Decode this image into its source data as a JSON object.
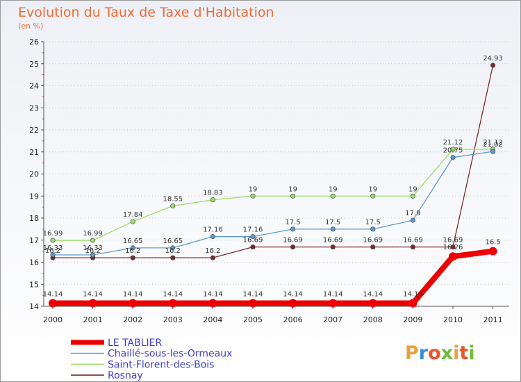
{
  "chart_data": {
    "type": "line",
    "title": "Evolution du Taux de Taxe d'Habitation",
    "subtitle": "(en %)",
    "categories": [
      "2000",
      "2001",
      "2002",
      "2003",
      "2004",
      "2005",
      "2006",
      "2007",
      "2008",
      "2009",
      "2010",
      "2011"
    ],
    "ylim": [
      14,
      26
    ],
    "yticks": [
      14,
      15,
      16,
      17,
      18,
      19,
      20,
      21,
      22,
      23,
      24,
      25,
      26
    ],
    "grid": "horizontal-dotted",
    "legend_position": "bottom-left",
    "series": [
      {
        "name": "LE TABLIER",
        "color": "#ee0000",
        "values": [
          14.14,
          14.14,
          14.14,
          14.14,
          14.14,
          14.14,
          14.14,
          14.14,
          14.14,
          14.14,
          16.26,
          16.5
        ],
        "labels": [
          "14.14",
          "14.14",
          "14.14",
          "14.14",
          "14.14",
          "14.14",
          "14.14",
          "14.14",
          "14.14",
          "14.14",
          "16.26",
          "16.5"
        ]
      },
      {
        "name": "Chaillé-sous-les-Ormeaux",
        "color": "#5b9bd5",
        "values": [
          16.33,
          16.33,
          16.65,
          16.65,
          17.16,
          17.16,
          17.5,
          17.5,
          17.5,
          17.9,
          20.75,
          21.02
        ],
        "labels": [
          "16.33",
          "16.33",
          "16.65",
          "16.65",
          "17.16",
          "17.16",
          "17.5",
          "17.5",
          "17.5",
          "17.9",
          "20.75",
          "21.02"
        ]
      },
      {
        "name": "Saint-Florent-des-Bois",
        "color": "#99dd66",
        "values": [
          16.99,
          16.99,
          17.84,
          18.55,
          18.83,
          19,
          19,
          19,
          19,
          19,
          21.12,
          21.12
        ],
        "labels": [
          "16.99",
          "16.99",
          "17.84",
          "18.55",
          "18.83",
          "19",
          "19",
          "19",
          "19",
          "19",
          "21.12",
          "21.12"
        ]
      },
      {
        "name": "Rosnay",
        "color": "#7a2a2a",
        "values": [
          16.2,
          16.2,
          16.2,
          16.2,
          16.2,
          16.69,
          16.69,
          16.69,
          16.69,
          16.69,
          16.69,
          24.93
        ],
        "labels": [
          "16.2",
          "16.2",
          "16.2",
          "16.2",
          "16.2",
          "16.69",
          "16.69",
          "16.69",
          "16.69",
          "16.69",
          "16.69",
          "24.93"
        ]
      }
    ]
  },
  "logo": {
    "text": "Proxiti",
    "letter_colors": [
      "#e8a23a",
      "#3b8fd6",
      "#e8562a",
      "#6cbf3a",
      "#e8a23a",
      "#e8562a",
      "#6cbf3a"
    ]
  }
}
